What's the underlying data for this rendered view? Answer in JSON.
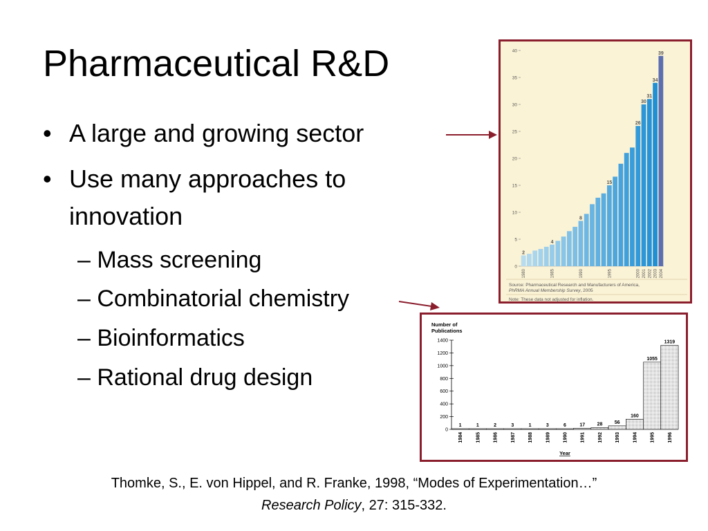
{
  "slide": {
    "title": "Pharmaceutical R&D",
    "bullets": [
      {
        "marker": "•",
        "text": "A large and growing sector"
      },
      {
        "marker": "•",
        "text": "Use many approaches to"
      },
      {
        "marker": "",
        "text": "innovation"
      }
    ],
    "sub_bullets": [
      "– Mass screening",
      "– Combinatorial chemistry",
      "– Bioinformatics",
      "– Rational drug design"
    ],
    "citation_line1": "Thomke, S., E. von Hippel, and R. Franke, 1998, “Modes of Experimentation…”",
    "citation_journal": "Research Policy",
    "citation_rest": ", 27: 315-332.",
    "colors": {
      "frame": "#8b1e2d",
      "arrow": "#8b1e2d",
      "chart1_bg": "#fbf3d6",
      "bar_light": "#b7dcf0",
      "bar_dark": "#1f8fd6",
      "bar_last": "#5b6fb0"
    }
  },
  "chart_data": [
    {
      "type": "bar",
      "title": "",
      "xlabel": "",
      "ylabel": "",
      "ylim": [
        0,
        40
      ],
      "yticks": [
        0,
        5,
        10,
        15,
        20,
        25,
        30,
        35,
        40
      ],
      "x": [
        1980,
        1981,
        1982,
        1983,
        1984,
        1985,
        1986,
        1987,
        1988,
        1989,
        1990,
        1991,
        1992,
        1993,
        1994,
        1995,
        1996,
        1997,
        1998,
        1999,
        2000,
        2001,
        2002,
        2003,
        2004
      ],
      "values": [
        2.0,
        2.3,
        2.9,
        3.2,
        3.6,
        4.0,
        4.7,
        5.5,
        6.5,
        7.3,
        8.4,
        9.7,
        11.5,
        12.7,
        13.5,
        15.0,
        16.6,
        19.0,
        21.0,
        22.0,
        26.0,
        30.0,
        31.0,
        34.0,
        39.0
      ],
      "xtick_labels": [
        {
          "x": 1980,
          "label": "1980"
        },
        {
          "x": 1985,
          "label": "1985"
        },
        {
          "x": 1990,
          "label": "1990"
        },
        {
          "x": 1995,
          "label": "1995"
        },
        {
          "x": 2000,
          "label": "2000"
        },
        {
          "x": 2001,
          "label": "2001"
        },
        {
          "x": 2002,
          "label": "2002"
        },
        {
          "x": 2003,
          "label": "2003"
        },
        {
          "x": 2004,
          "label": "2004"
        }
      ],
      "data_labels": [
        {
          "x": 1980,
          "label": "2"
        },
        {
          "x": 1985,
          "label": "4"
        },
        {
          "x": 1990,
          "label": "8"
        },
        {
          "x": 1995,
          "label": "15"
        },
        {
          "x": 2000,
          "label": "26"
        },
        {
          "x": 2001,
          "label": "30"
        },
        {
          "x": 2002,
          "label": "31"
        },
        {
          "x": 2003,
          "label": "34"
        },
        {
          "x": 2004,
          "label": "39"
        }
      ],
      "source_line1": "Source: Pharmaceutical Research and Manufacturers of America,",
      "source_line2_italic": "PhRMA Annual Membership Survey",
      "source_line2_rest": ", 2005",
      "note": "Note: These data not adjusted for inflation."
    },
    {
      "type": "bar",
      "title": "",
      "ylabel": "Number of Publications",
      "xlabel": "Year",
      "ylim": [
        0,
        1400
      ],
      "yticks": [
        0,
        200,
        400,
        600,
        800,
        1000,
        1200,
        1400
      ],
      "categories": [
        "1984",
        "1985",
        "1986",
        "1987",
        "1988",
        "1989",
        "1990",
        "1991",
        "1992",
        "1993",
        "1994",
        "1995",
        "1996"
      ],
      "values": [
        1,
        1,
        2,
        3,
        1,
        3,
        6,
        17,
        28,
        56,
        160,
        1055,
        1319
      ]
    }
  ]
}
